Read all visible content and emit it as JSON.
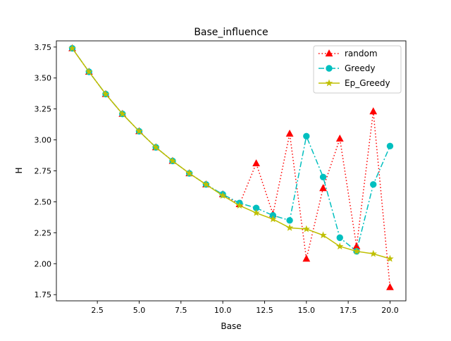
{
  "chart_data": {
    "type": "line",
    "title": "Base_influence",
    "xlabel": "Base",
    "ylabel": "H",
    "x": [
      1,
      2,
      3,
      4,
      5,
      6,
      7,
      8,
      9,
      10,
      11,
      12,
      13,
      14,
      15,
      16,
      17,
      18,
      19,
      20
    ],
    "xlim": [
      0.05,
      20.95
    ],
    "ylim": [
      1.7,
      3.8
    ],
    "xticks": [
      2.5,
      5.0,
      7.5,
      10.0,
      12.5,
      15.0,
      17.5,
      20.0
    ],
    "xtick_labels": [
      "2.5",
      "5.0",
      "7.5",
      "10.0",
      "12.5",
      "15.0",
      "17.5",
      "20.0"
    ],
    "yticks": [
      1.75,
      2.0,
      2.25,
      2.5,
      2.75,
      3.0,
      3.25,
      3.5,
      3.75
    ],
    "ytick_labels": [
      "1.75",
      "2.00",
      "2.25",
      "2.50",
      "2.75",
      "3.00",
      "3.25",
      "3.50",
      "3.75"
    ],
    "grid": false,
    "legend_position": "top-right",
    "series": [
      {
        "name": "random",
        "color": "#ff0000",
        "line_style": "dotted",
        "marker": "triangle",
        "values": [
          3.74,
          3.55,
          3.37,
          3.21,
          3.07,
          2.94,
          2.83,
          2.73,
          2.64,
          2.56,
          2.48,
          2.81,
          2.4,
          3.05,
          2.04,
          2.61,
          3.01,
          2.14,
          3.23,
          1.81
        ]
      },
      {
        "name": "Greedy",
        "color": "#00bfbf",
        "line_style": "dashdot",
        "marker": "circle",
        "values": [
          3.74,
          3.55,
          3.37,
          3.21,
          3.07,
          2.94,
          2.83,
          2.73,
          2.64,
          2.56,
          2.49,
          2.45,
          2.39,
          2.35,
          3.03,
          2.7,
          2.21,
          2.1,
          2.64,
          2.95
        ]
      },
      {
        "name": "Ep_Greedy",
        "color": "#bfbf00",
        "line_style": "solid",
        "marker": "star",
        "values": [
          3.74,
          3.55,
          3.37,
          3.21,
          3.07,
          2.94,
          2.83,
          2.73,
          2.64,
          2.55,
          2.47,
          2.41,
          2.36,
          2.29,
          2.28,
          2.23,
          2.14,
          2.1,
          2.08,
          2.04
        ]
      }
    ]
  }
}
